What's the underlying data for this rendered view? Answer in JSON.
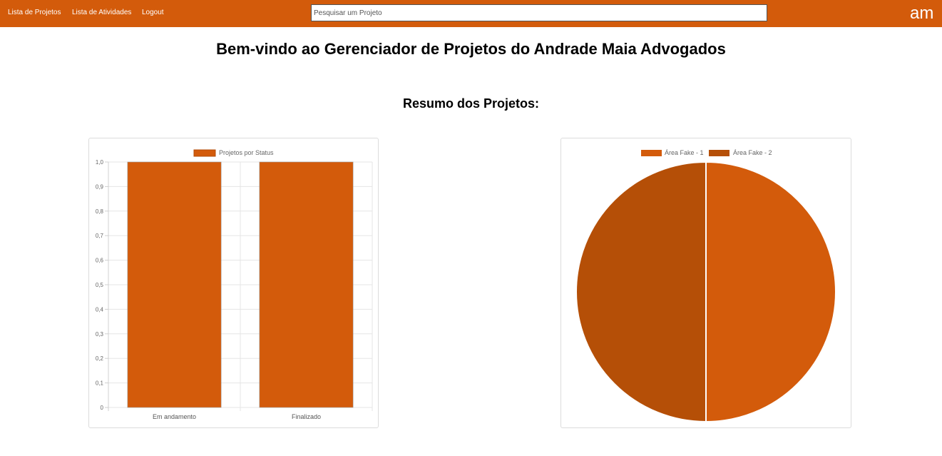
{
  "nav": {
    "links": [
      "Lista de Projetos",
      "Lista de Atividades",
      "Logout"
    ],
    "search_placeholder": "Pesquisar um Projeto",
    "logo_text": "am"
  },
  "main": {
    "title": "Bem-vindo ao Gerenciador de Projetos do Andrade Maia Advogados",
    "summary_title": "Resumo dos Projetos:"
  },
  "colors": {
    "brand": "#d35b0b",
    "pie_second": "#b54f07"
  },
  "chart_data": [
    {
      "type": "bar",
      "categories": [
        "Em andamento",
        "Finalizado"
      ],
      "series": [
        {
          "name": "Projetos por Status",
          "values": [
            1,
            1
          ]
        }
      ],
      "ylim": [
        0,
        1
      ],
      "yticks": [
        "0",
        "0,1",
        "0,2",
        "0,3",
        "0,4",
        "0,5",
        "0,6",
        "0,7",
        "0,8",
        "0,9",
        "1,0"
      ],
      "legend": "top",
      "grid": true
    },
    {
      "type": "pie",
      "labels": [
        "Área Fake - 1",
        "Área Fake - 2"
      ],
      "values": [
        1,
        1
      ],
      "legend": "top"
    }
  ]
}
